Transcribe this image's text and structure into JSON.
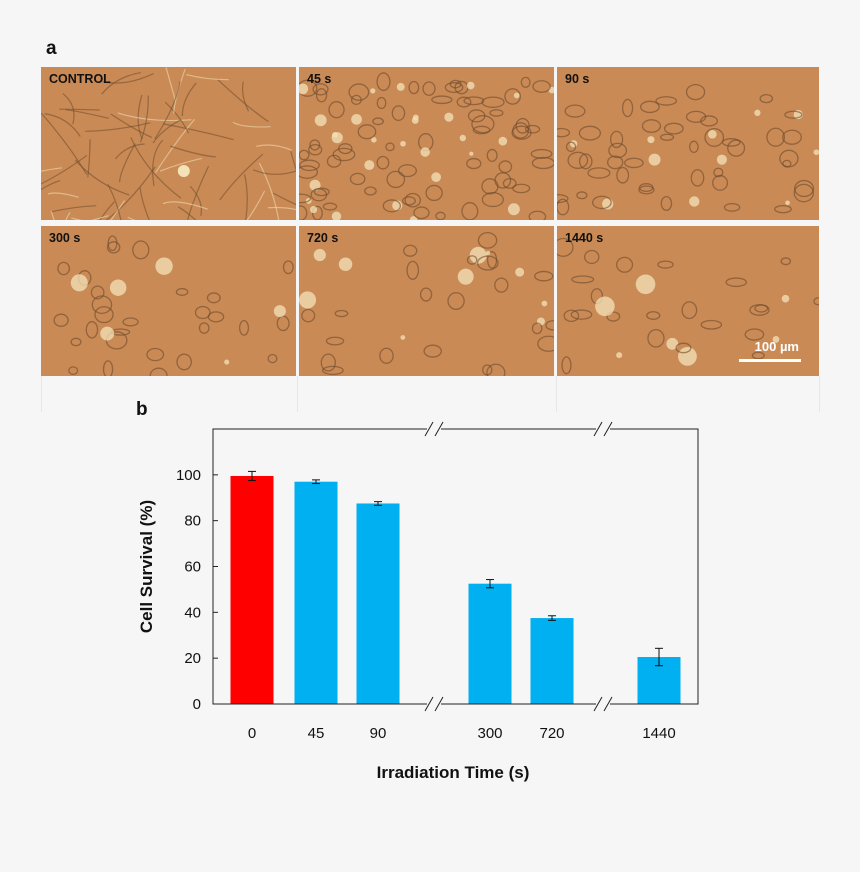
{
  "figure": {
    "panel_a_label": "a",
    "panel_b_label": "b",
    "micrographs": [
      {
        "label": "CONTROL"
      },
      {
        "label": "45 s"
      },
      {
        "label": "90 s"
      },
      {
        "label": "300 s"
      },
      {
        "label": "720 s"
      },
      {
        "label": "1440 s"
      }
    ],
    "scale_bar_label": "100 µm"
  },
  "colors": {
    "control_bar": "#ff0000",
    "treated_bar": "#00b0f0",
    "micrograph_base": "#c98a55",
    "cell_outline": "#6e4a2c",
    "cell_highlight": "#f3e2b8"
  },
  "chart_data": {
    "type": "bar",
    "categories": [
      "0",
      "45",
      "90",
      "300",
      "720",
      "1440"
    ],
    "series": [
      {
        "values": [
          99.5,
          97,
          87.5,
          52.5,
          37.5,
          20.5
        ],
        "errors": [
          2,
          0.8,
          0.8,
          1.8,
          1,
          3.8
        ]
      }
    ],
    "xlabel": "Irradiation Time (s)",
    "ylabel": "Cell Survival  (%)",
    "ylim": [
      0,
      120
    ],
    "yticks": [
      0,
      20,
      40,
      60,
      80,
      100
    ],
    "axis_breaks": "between 90 and 300, between 720 and 1440",
    "grid": false,
    "legend": "none"
  }
}
